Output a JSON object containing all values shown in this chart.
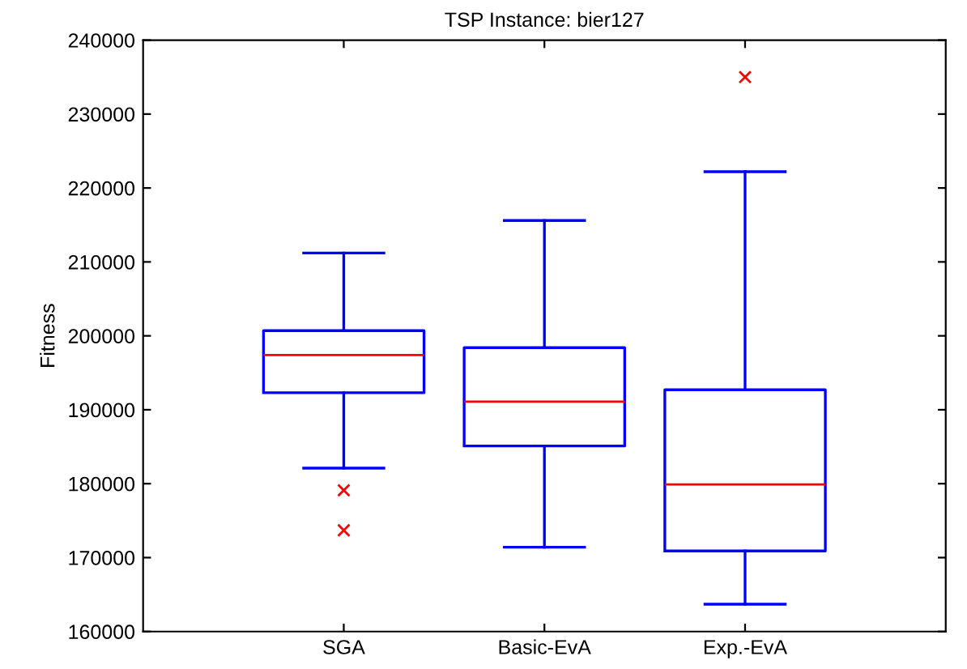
{
  "chart_data": {
    "type": "box",
    "title": "TSP Instance: bier127",
    "ylabel": "Fitness",
    "categories": [
      "SGA",
      "Basic-EvA",
      "Exp.-EvA"
    ],
    "series": [
      {
        "color": "#0000ff",
        "boxes": [
          {
            "low": 182100,
            "q1": 192300,
            "median": 197400,
            "q3": 200700,
            "high": 211200,
            "outliers": [
              179100,
              173700
            ]
          },
          {
            "low": 171400,
            "q1": 185100,
            "median": 191100,
            "q3": 198400,
            "high": 215600
          },
          {
            "low": 163700,
            "q1": 170900,
            "median": 179900,
            "q3": 192700,
            "high": 222200,
            "outliers": [
              235000
            ]
          }
        ]
      }
    ],
    "ylim": [
      160000,
      240000
    ],
    "yticks": [
      160000,
      170000,
      180000,
      190000,
      200000,
      210000,
      220000,
      230000,
      240000
    ],
    "grid": false,
    "legend": false
  }
}
